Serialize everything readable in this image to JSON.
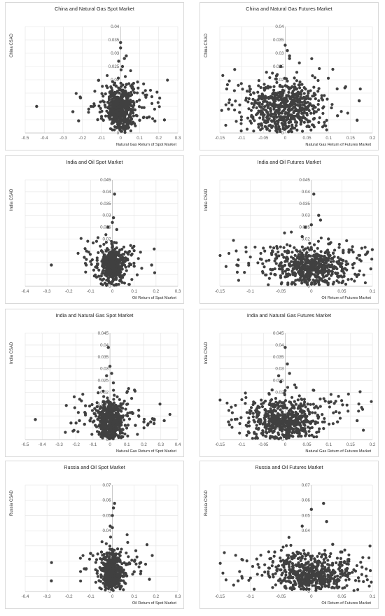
{
  "chart_data": [
    {
      "type": "scatter",
      "title": "China and Natural Gas Spot Market",
      "xlabel": "Natural Gas Return of Spot Market",
      "ylabel": "China CSAD",
      "xlim": [
        -0.5,
        0.3
      ],
      "ylim": [
        0,
        0.04
      ],
      "xticks": [
        "-0.5",
        "-0.4",
        "-0.3",
        "-0.2",
        "-0.1",
        "0",
        "0.1",
        "0.2",
        "0.3"
      ],
      "yticks": [
        "0",
        "0.005",
        "0.01",
        "0.015",
        "0.02",
        "0.025",
        "0.03",
        "0.035",
        "0.04"
      ],
      "ytick_label_from": 1,
      "core": {
        "cx": 0,
        "cy": 0.009,
        "w": 0.06,
        "h": 0.012,
        "n": 520,
        "tail": 0.2
      },
      "points": [
        [
          -0.44,
          0.01
        ],
        [
          -0.25,
          0.008
        ],
        [
          -0.21,
          0.0132
        ],
        [
          -0.22,
          0.0046
        ],
        [
          -0.1,
          0.0055
        ],
        [
          -0.09,
          0.0048
        ],
        [
          -0.12,
          0.005
        ],
        [
          0.1,
          0.0048
        ],
        [
          0.12,
          0.0058
        ],
        [
          0.15,
          0.006
        ],
        [
          0.18,
          0.0045
        ],
        [
          0.23,
          0.0049
        ],
        [
          0.0,
          0.034
        ],
        [
          0.0,
          0.032
        ],
        [
          0.02,
          0.028
        ],
        [
          0.03,
          0.029
        ],
        [
          -0.01,
          0.027
        ],
        [
          0.01,
          0.025
        ],
        [
          -0.04,
          0.015
        ],
        [
          0.06,
          0.017
        ]
      ]
    },
    {
      "type": "scatter",
      "title": "China and Natural Gas Futures Market",
      "xlabel": "Natural Gas Return of Futures Market",
      "ylabel": "China CSAD",
      "xlim": [
        -0.15,
        0.2
      ],
      "ylim": [
        0,
        0.04
      ],
      "xticks": [
        "-0.15",
        "-0.1",
        "-0.05",
        "0",
        "0.05",
        "0.1",
        "0.15",
        "0.2"
      ],
      "yticks": [
        "0",
        "0.005",
        "0.01",
        "0.015",
        "0.02",
        "0.025",
        "0.03",
        "0.035",
        "0.04"
      ],
      "ytick_label_from": 1,
      "core": {
        "cx": 0,
        "cy": 0.009,
        "w": 0.075,
        "h": 0.014,
        "n": 650,
        "tail": 0.18
      },
      "points": [
        [
          -0.13,
          0.009
        ],
        [
          -0.06,
          0.0138
        ],
        [
          -0.05,
          0.0118
        ],
        [
          0.12,
          0.0065
        ],
        [
          0.165,
          0.0048
        ],
        [
          0.09,
          0.004
        ],
        [
          -0.08,
          0.0045
        ],
        [
          0.0,
          0.033
        ],
        [
          0.005,
          0.031
        ],
        [
          0.01,
          0.029
        ],
        [
          0.01,
          0.028
        ],
        [
          -0.01,
          0.025
        ],
        [
          0.02,
          0.0145
        ],
        [
          -0.02,
          0.0215
        ]
      ]
    },
    {
      "type": "scatter",
      "title": "India and Oil Spot Market",
      "xlabel": "Oil Return of Spot Market",
      "ylabel": "India CSAD",
      "xlim": [
        -0.4,
        0.3
      ],
      "ylim": [
        0,
        0.045
      ],
      "xticks": [
        "-0.4",
        "-0.3",
        "-0.2",
        "-0.1",
        "0",
        "0.1",
        "0.2",
        "0.3"
      ],
      "yticks": [
        "0",
        "0.005",
        "0.01",
        "0.015",
        "0.02",
        "0.025",
        "0.03",
        "0.035",
        "0.04",
        "0.045"
      ],
      "ytick_label_from": 1,
      "core": {
        "cx": 0,
        "cy": 0.0085,
        "w": 0.05,
        "h": 0.011,
        "n": 480,
        "tail": 0.15
      },
      "points": [
        [
          -0.28,
          0.009
        ],
        [
          -0.12,
          0.009
        ],
        [
          0.18,
          0.009
        ],
        [
          -0.1,
          0.0105
        ],
        [
          0.1,
          0.0085
        ],
        [
          0.06,
          0.012
        ],
        [
          0.01,
          0.039
        ],
        [
          0.005,
          0.029
        ],
        [
          0.0,
          0.027
        ],
        [
          -0.02,
          0.025
        ],
        [
          0.02,
          0.024
        ],
        [
          -0.05,
          0.015
        ],
        [
          0.07,
          0.014
        ],
        [
          -0.07,
          0.011
        ]
      ]
    },
    {
      "type": "scatter",
      "title": "India and Oil Futures Market",
      "xlabel": "Oil Return of Futures Market",
      "ylabel": "India CSAD",
      "xlim": [
        -0.15,
        0.1
      ],
      "ylim": [
        0,
        0.045
      ],
      "xticks": [
        "-0.15",
        "-0.1",
        "-0.05",
        "0",
        "0.05",
        "0.1"
      ],
      "yticks": [
        "0",
        "0.005",
        "0.01",
        "0.015",
        "0.02",
        "0.025",
        "0.03",
        "0.035",
        "0.04",
        "0.045"
      ],
      "ytick_label_from": 1,
      "core": {
        "cx": 0,
        "cy": 0.008,
        "w": 0.06,
        "h": 0.012,
        "n": 620,
        "tail": 0.2
      },
      "points": [
        [
          -0.122,
          0.009
        ],
        [
          -0.12,
          0.0088
        ],
        [
          0.057,
          0.0105
        ],
        [
          0.055,
          0.0075
        ],
        [
          0.05,
          0.0065
        ],
        [
          0.052,
          0.0145
        ],
        [
          -0.058,
          0.0135
        ],
        [
          -0.06,
          0.005
        ],
        [
          0.004,
          0.039
        ],
        [
          0.012,
          0.03
        ],
        [
          0.015,
          0.028
        ],
        [
          -0.01,
          0.025
        ],
        [
          0.0,
          0.026
        ],
        [
          -0.015,
          0.021
        ],
        [
          0.028,
          0.02
        ],
        [
          0.03,
          0.018
        ]
      ]
    },
    {
      "type": "scatter",
      "title": "India and Natural Gas Spot Market",
      "xlabel": "Natural Gas Return of Spot Market",
      "ylabel": "India CSAD",
      "xlim": [
        -0.5,
        0.4
      ],
      "ylim": [
        0,
        0.045
      ],
      "xticks": [
        "-0.5",
        "-0.4",
        "-0.3",
        "-0.2",
        "-0.1",
        "0",
        "0.1",
        "0.2",
        "0.3",
        "0.4"
      ],
      "yticks": [
        "0",
        "0.005",
        "0.01",
        "0.015",
        "0.02",
        "0.025",
        "0.03",
        "0.035",
        "0.04",
        "0.045"
      ],
      "ytick_label_from": 1,
      "core": {
        "cx": 0,
        "cy": 0.008,
        "w": 0.065,
        "h": 0.012,
        "n": 520,
        "tail": 0.22
      },
      "points": [
        [
          -0.44,
          0.0085
        ],
        [
          -0.23,
          0.007
        ],
        [
          -0.2,
          0.007
        ],
        [
          -0.18,
          0.008
        ],
        [
          -0.15,
          0.0065
        ],
        [
          0.15,
          0.006
        ],
        [
          0.2,
          0.0075
        ],
        [
          0.24,
          0.0075
        ],
        [
          0.26,
          0.0068
        ],
        [
          0.32,
          0.008
        ],
        [
          -0.1,
          0.0075
        ],
        [
          0.09,
          0.006
        ],
        [
          -0.01,
          0.039
        ],
        [
          0.0,
          0.031
        ],
        [
          0.01,
          0.028
        ],
        [
          -0.02,
          0.027
        ],
        [
          -0.06,
          0.022
        ],
        [
          0.02,
          0.024
        ]
      ]
    },
    {
      "type": "scatter",
      "title": "India and Natural Gas Futures Market",
      "xlabel": "Natural Gas Return of Futures Market",
      "ylabel": "India CSAD",
      "xlim": [
        -0.15,
        0.2
      ],
      "ylim": [
        0,
        0.045
      ],
      "xticks": [
        "-0.15",
        "-0.1",
        "-0.05",
        "0",
        "0.05",
        "0.1",
        "0.15",
        "0.2"
      ],
      "yticks": [
        "0",
        "0.005",
        "0.01",
        "0.015",
        "0.02",
        "0.025",
        "0.03",
        "0.035",
        "0.04",
        "0.045"
      ],
      "ytick_label_from": 1,
      "core": {
        "cx": 0,
        "cy": 0.008,
        "w": 0.07,
        "h": 0.013,
        "n": 620,
        "tail": 0.2
      },
      "points": [
        [
          -0.13,
          0.0075
        ],
        [
          -0.07,
          0.0075
        ],
        [
          -0.06,
          0.0085
        ],
        [
          0.09,
          0.0075
        ],
        [
          0.12,
          0.0075
        ],
        [
          0.165,
          0.008
        ],
        [
          0.07,
          0.0075
        ],
        [
          0.0,
          0.039
        ],
        [
          0.005,
          0.032
        ],
        [
          0.01,
          0.028
        ],
        [
          -0.015,
          0.027
        ],
        [
          -0.03,
          0.021
        ],
        [
          0.025,
          0.022
        ],
        [
          -0.01,
          0.0245
        ]
      ]
    },
    {
      "type": "scatter",
      "title": "Russia and Oil Spot Market",
      "xlabel": "Oil Return of Spot Market",
      "ylabel": "Russia CSAD",
      "xlim": [
        -0.4,
        0.3
      ],
      "ylim": [
        0,
        0.07
      ],
      "xticks": [
        "-0.4",
        "-0.3",
        "-0.2",
        "-0.1",
        "0",
        "0.1",
        "0.2",
        "0.3"
      ],
      "yticks": [
        "0",
        "0.01",
        "0.02",
        "0.03",
        "0.04",
        "0.05",
        "0.06",
        "0.07"
      ],
      "ytick_label_from": 4,
      "core": {
        "cx": 0,
        "cy": 0.013,
        "w": 0.045,
        "h": 0.018,
        "n": 480,
        "tail": 0.15
      },
      "points": [
        [
          -0.28,
          0.007
        ],
        [
          -0.12,
          0.015
        ],
        [
          -0.1,
          0.025
        ],
        [
          0.1,
          0.013
        ],
        [
          0.13,
          0.019
        ],
        [
          0.17,
          0.008
        ],
        [
          0.06,
          0.012
        ],
        [
          0.01,
          0.058
        ],
        [
          0.005,
          0.055
        ],
        [
          0.0,
          0.05
        ],
        [
          -0.01,
          0.043
        ],
        [
          0.0,
          0.042
        ],
        [
          -0.05,
          0.026
        ],
        [
          0.07,
          0.018
        ],
        [
          -0.07,
          0.012
        ]
      ]
    },
    {
      "type": "scatter",
      "title": "Russia and Oil Futures Market",
      "xlabel": "Oil Return of Futures Market",
      "ylabel": "Russia CSAD",
      "xlim": [
        -0.15,
        0.1
      ],
      "ylim": [
        0,
        0.07
      ],
      "xticks": [
        "-0.15",
        "-0.1",
        "-0.05",
        "0",
        "0.05",
        "0.1"
      ],
      "yticks": [
        "0",
        "0.01",
        "0.02",
        "0.03",
        "0.04",
        "0.05",
        "0.06",
        "0.07"
      ],
      "ytick_label_from": 4,
      "core": {
        "cx": 0,
        "cy": 0.012,
        "w": 0.055,
        "h": 0.017,
        "n": 600,
        "tail": 0.2
      },
      "points": [
        [
          -0.12,
          0.007
        ],
        [
          0.083,
          0.016
        ],
        [
          0.06,
          0.011
        ],
        [
          0.06,
          0.021
        ],
        [
          -0.06,
          0.026
        ],
        [
          0.05,
          0.026
        ],
        [
          0.02,
          0.058
        ],
        [
          0.0,
          0.054
        ],
        [
          -0.015,
          0.043
        ],
        [
          0.025,
          0.046
        ],
        [
          0.035,
          0.031
        ],
        [
          0.048,
          0.026
        ],
        [
          -0.05,
          0.02
        ],
        [
          -0.03,
          0.023
        ]
      ]
    }
  ]
}
